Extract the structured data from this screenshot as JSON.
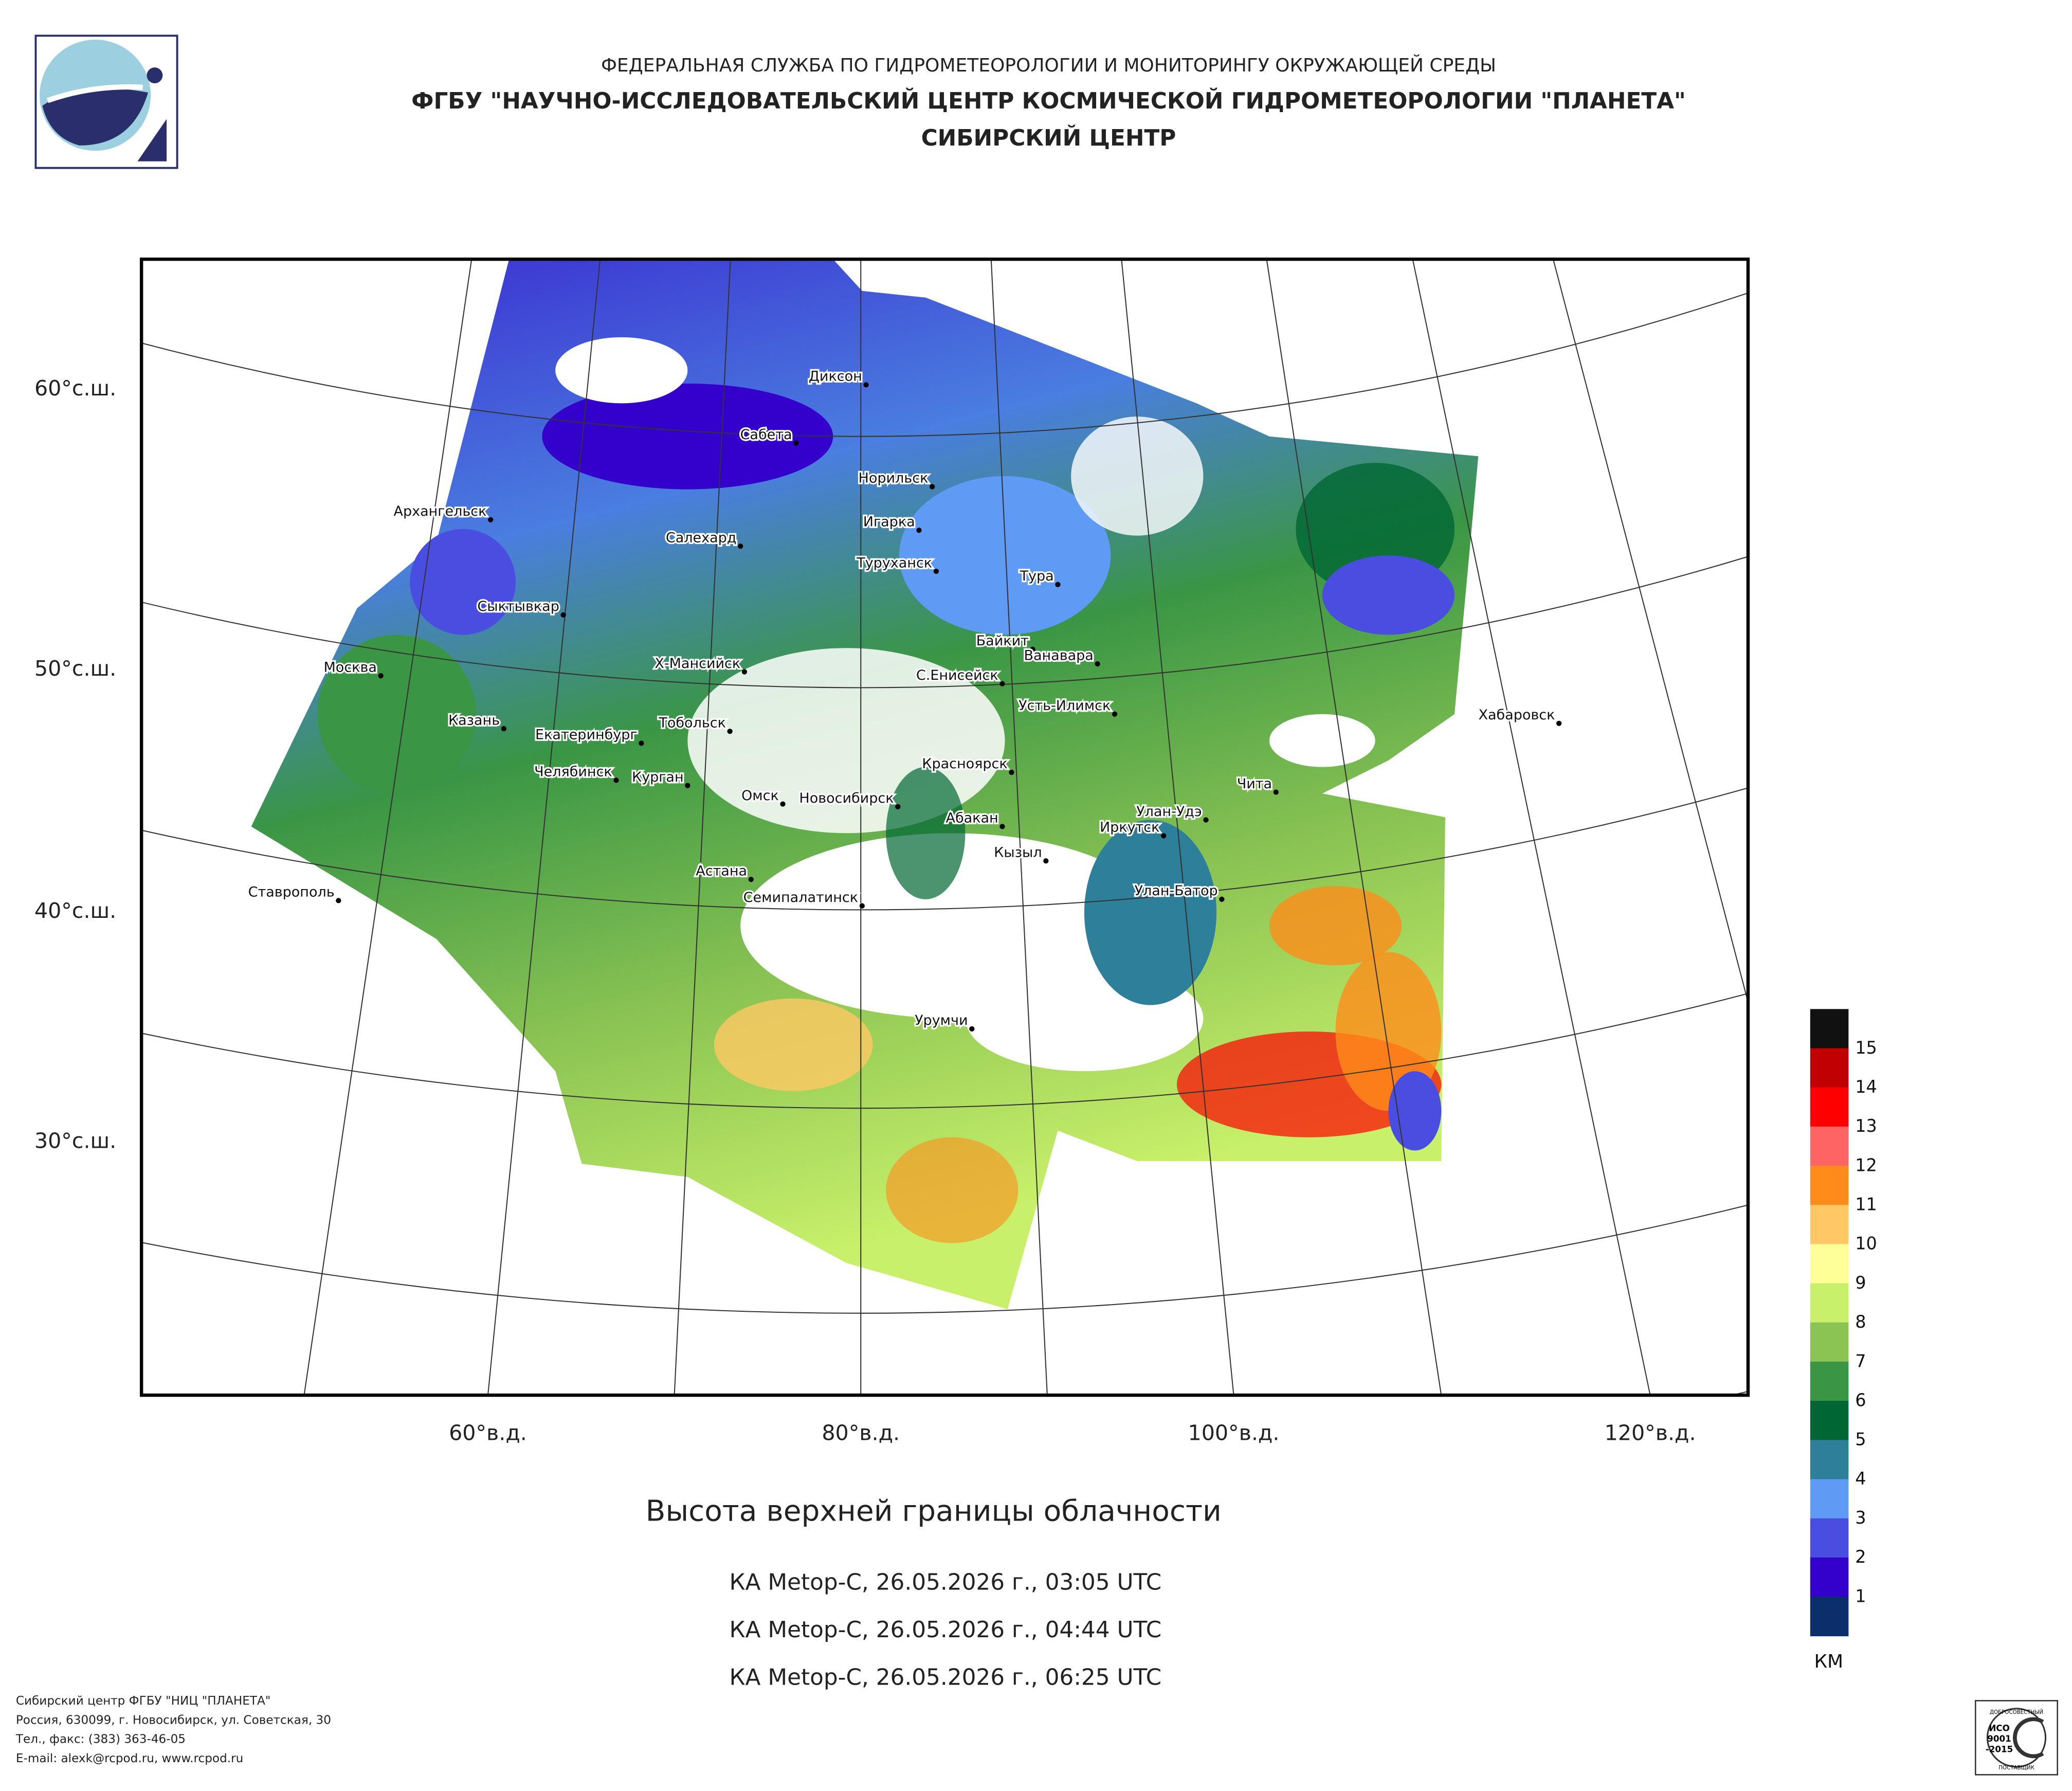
{
  "header": {
    "agency": "ФЕДЕРАЛЬНАЯ СЛУЖБА ПО ГИДРОМЕТЕОРОЛОГИИ И МОНИТОРИНГУ ОКРУЖАЮЩЕЙ СРЕДЫ",
    "org": "ФГБУ \"НАУЧНО-ИССЛЕДОВАТЕЛЬСКИЙ ЦЕНТР КОСМИЧЕСКОЙ ГИДРОМЕТЕОРОЛОГИИ \"ПЛАНЕТА\"",
    "center": "СИБИРСКИЙ ЦЕНТР"
  },
  "map": {
    "cities": [
      "Диксон",
      "Сабета",
      "Норильск",
      "Игарка",
      "Архангельск",
      "Салехард",
      "Туруханск",
      "Тура",
      "Сыктывкар",
      "Байкит",
      "Ванавара",
      "Х-Мансийск",
      "С.Енисейск",
      "Москва",
      "Усть-Илимск",
      "Казань",
      "Тобольск",
      "Екатеринбург",
      "Хабаровск",
      "Красноярск",
      "Челябинск",
      "Курган",
      "Чита",
      "Омск",
      "Новосибирск",
      "Улан-Удэ",
      "Абакан",
      "Иркутск",
      "Кызыл",
      "Астана",
      "Улан-Батор",
      "Семипалатинск",
      "Ставрополь",
      "Урумчи"
    ],
    "lat_labels": [
      "60°с.ш.",
      "50°с.ш.",
      "40°с.ш.",
      "30°с.ш."
    ],
    "lon_labels": [
      "60°в.д.",
      "80°в.д.",
      "100°в.д.",
      "120°в.д."
    ]
  },
  "legend": {
    "colors": [
      "#111111",
      "#c00000",
      "#ff0000",
      "#ff6464",
      "#ff8c1a",
      "#ffc864",
      "#ffff99",
      "#c8f06a",
      "#8bc453",
      "#3a9645",
      "#006633",
      "#2e7f9a",
      "#5f9bf5",
      "#4a4ee0",
      "#3300cc",
      "#0a2f6b"
    ],
    "labels": [
      "15",
      "14",
      "13",
      "12",
      "11",
      "10",
      "9",
      "8",
      "7",
      "6",
      "5",
      "4",
      "3",
      "2",
      "1"
    ],
    "unit": "КМ"
  },
  "title": "Высота верхней границы облачности",
  "passes": [
    "КА Metop-C, 26.05.2026 г., 03:05 UTC",
    "КА Metop-C, 26.05.2026 г., 04:44 UTC",
    "КА Metop-C, 26.05.2026 г., 06:25 UTC"
  ],
  "footer": [
    "Сибирский центр ФГБУ \"НИЦ \"ПЛАНЕТА\"",
    "Россия, 630099, г. Новосибирск, ул. Советская, 30",
    "Тел., факс: (383) 363-46-05",
    "E-mail: alexk@rcpod.ru, www.rcpod.ru"
  ],
  "iso_badge": {
    "top": "ДОБРОСОВЕСТНЫЙ",
    "line1": "ИСО",
    "line2": "9001",
    "line3": "-2015",
    "bottom": "ПОСТАВЩИК"
  }
}
